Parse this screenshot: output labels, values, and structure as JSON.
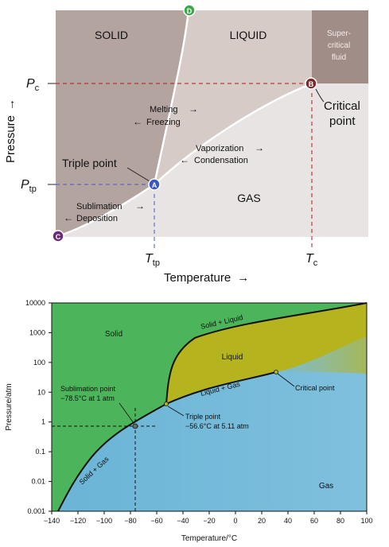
{
  "top": {
    "regions": {
      "solid": "SOLID",
      "liquid": "LIQUID",
      "supercritical_1": "Super-",
      "supercritical_2": "critical",
      "supercritical_3": "fluid",
      "gas": "GAS"
    },
    "axes": {
      "x_label": "Temperature",
      "y_label": "Pressure",
      "arrow": "→"
    },
    "ticks": {
      "pc": "P",
      "pc_sub": "c",
      "ptp": "P",
      "ptp_sub": "tp",
      "ttp": "T",
      "ttp_sub": "tp",
      "tc": "T",
      "tc_sub": "c"
    },
    "transitions": {
      "melting": "Melting",
      "freezing": "Freezing",
      "vaporization": "Vaporization",
      "condensation": "Condensation",
      "sublimation": "Sublimation",
      "deposition": "Deposition",
      "right_arrow": "→",
      "left_arrow": "←"
    },
    "points": {
      "a": "A",
      "b": "B",
      "c": "C",
      "d": "D",
      "triple": "Triple point",
      "critical_1": "Critical",
      "critical_2": "point"
    },
    "colors": {
      "solid": "#b3a49f",
      "liquid": "#d7cbc7",
      "gas": "#e8e4e3",
      "supercritical": "#a08d87",
      "point_a": "#3c55c8",
      "point_b": "#7a2a2a",
      "point_c": "#6a2a7a",
      "point_d": "#3aa84a"
    }
  },
  "bottom": {
    "regions": {
      "solid": "Solid",
      "liquid": "Liquid",
      "gas": "Gas"
    },
    "curves": {
      "solid_liquid": "Solid + Liquid",
      "liquid_gas": "Liquid + Gas",
      "solid_gas": "Solid + Gas"
    },
    "annotations": {
      "sublimation_1": "Sublimation point",
      "sublimation_2": "−78.5°C at 1 atm",
      "triple_1": "Triple point",
      "triple_2": "−56.6°C at 5.11 atm",
      "critical": "Critical point"
    },
    "axes": {
      "x_label": "Temperature/°C",
      "y_label": "Pressure/atm"
    },
    "x_ticks": [
      "−140",
      "−120",
      "−100",
      "−80",
      "−60",
      "−40",
      "−20",
      "0",
      "20",
      "40",
      "60",
      "80",
      "100"
    ],
    "y_ticks": [
      "10000",
      "1000",
      "100",
      "10",
      "1",
      "0.1",
      "0.01",
      "0.001"
    ],
    "colors": {
      "solid": "#4cb45a",
      "liquid": "#b5b31e",
      "gas": "#6fb8d8"
    }
  }
}
